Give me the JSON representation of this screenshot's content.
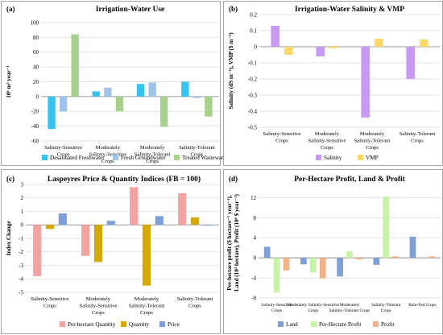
{
  "colors": {
    "light_blue": "#35c3f0",
    "pale_blue": "#9fc4e8",
    "green": "#a9d18e",
    "purple": "#c79bf2",
    "yellow": "#ffd966",
    "pink": "#f4a3a3",
    "gold": "#d6a900",
    "steel_blue": "#7f9fd8",
    "light_green": "#c9f2a6",
    "salmon": "#f4b183",
    "frame": "#a6a6a6",
    "grid": "#d9d9d9"
  },
  "chart_data": [
    {
      "panel_label": "(a)",
      "type": "bar",
      "title": "Irrigation-Water Use",
      "ylabel": "10⁶ m³ year⁻¹",
      "ylim": [
        -60,
        100
      ],
      "yticks": [
        -60,
        -40,
        -20,
        0,
        20,
        40,
        60,
        80,
        100
      ],
      "grid": true,
      "legend_position": "bottom",
      "categories": [
        [
          "Salinity-Sensitive",
          "Crops"
        ],
        [
          "Moderately",
          "Salinity-Sensitive",
          "Crops"
        ],
        [
          "Moderately",
          "Salinity-Tolerant",
          "Crops"
        ],
        [
          "Salinity-Tolerant",
          "Crops"
        ]
      ],
      "series": [
        {
          "name": "Desalinated Freshwater",
          "color": "#35c3f0",
          "values": [
            -44,
            7,
            17,
            20
          ]
        },
        {
          "name": "Fresh Groundwater",
          "color": "#9fc4e8",
          "values": [
            -20,
            12,
            19,
            -2
          ]
        },
        {
          "name": "Treated Wastewater",
          "color": "#a9d18e",
          "values": [
            84,
            -20,
            -41,
            -27
          ]
        }
      ]
    },
    {
      "panel_label": "(b)",
      "type": "bar",
      "title": "Irrigation-Water Salinity & VMP",
      "ylabel": "Salinity (dS m⁻¹), VMP ($ m⁻³)",
      "ylim": [
        -0.5,
        0.2
      ],
      "yticks": [
        -0.5,
        -0.4,
        -0.3,
        -0.2,
        -0.1,
        0,
        0.1,
        0.2
      ],
      "grid": true,
      "legend_position": "bottom",
      "categories": [
        [
          "Salinity-Sensitive",
          "Crops"
        ],
        [
          "Moderately",
          "Salinity-Sensitive",
          "Crops"
        ],
        [
          "Moderately",
          "Salinity-Tolerant",
          "Crops"
        ],
        [
          "Salinity-Tolerant",
          "Crops"
        ]
      ],
      "series": [
        {
          "name": "Salinity",
          "color": "#c79bf2",
          "values": [
            0.13,
            -0.06,
            -0.44,
            -0.2
          ]
        },
        {
          "name": "VMP",
          "color": "#ffd966",
          "values": [
            -0.05,
            -0.01,
            0.05,
            0.045
          ]
        }
      ]
    },
    {
      "panel_label": "(c)",
      "type": "bar",
      "title": "Laspeyres Price & Quantity Indices (FB = 100)",
      "ylabel": "Index Change",
      "ylim": [
        -5,
        3
      ],
      "yticks": [
        -5,
        -4,
        -3,
        -2,
        -1,
        0,
        1,
        2,
        3
      ],
      "grid": true,
      "legend_position": "bottom",
      "categories": [
        [
          "Salinity-Sensitive",
          "Crops"
        ],
        [
          "Moderately",
          "Salinity-Sensitive",
          "Crops"
        ],
        [
          "Moderately",
          "Salinity-Tolerant",
          "Crops"
        ],
        [
          "Salinity-Tolerant",
          "Crops"
        ]
      ],
      "series": [
        {
          "name": "Per-hectare Quantity",
          "color": "#f4a3a3",
          "values": [
            -3.8,
            -2.3,
            2.8,
            2.35
          ]
        },
        {
          "name": "Quantity",
          "color": "#d6a900",
          "values": [
            -0.3,
            -2.75,
            -4.5,
            0.55
          ]
        },
        {
          "name": "Price",
          "color": "#7f9fd8",
          "values": [
            0.85,
            0.3,
            0.65,
            -0.05
          ]
        }
      ]
    },
    {
      "panel_label": "(d)",
      "type": "bar",
      "title": "Per-Hectare Profit, Land & Profit",
      "ylabel_lines": [
        "Per-hectare profit ($ hectare⁻¹ year⁻¹),",
        "Land (10³ hectare), Profit (10⁶ $ year⁻¹)"
      ],
      "ylim": [
        -8,
        14
      ],
      "yticks": [
        -8,
        -4,
        0,
        4,
        8,
        12
      ],
      "grid": true,
      "legend_position": "bottom",
      "categories": [
        [
          "Salinity-Sensitive",
          "Crops"
        ],
        [
          "Moderately Salinity-Sensitive",
          "Crops"
        ],
        [
          "Moderately",
          "Salinity-Tolerant Crops"
        ],
        [
          "Salinity-Tolerant",
          "Crops"
        ],
        [
          "Rain-Fed Crops"
        ]
      ],
      "series": [
        {
          "name": "Land",
          "color": "#7f9fd8",
          "values": [
            2.2,
            -1.3,
            -3.7,
            -1.4,
            4.2
          ]
        },
        {
          "name": "Per-Hectare Profit",
          "color": "#c9f2a6",
          "values": [
            -6.9,
            -2.9,
            1.3,
            12.2,
            0
          ]
        },
        {
          "name": "Profit",
          "color": "#f4b183",
          "values": [
            -2.5,
            -4.1,
            -0.3,
            0.3,
            0.3
          ]
        }
      ]
    }
  ]
}
